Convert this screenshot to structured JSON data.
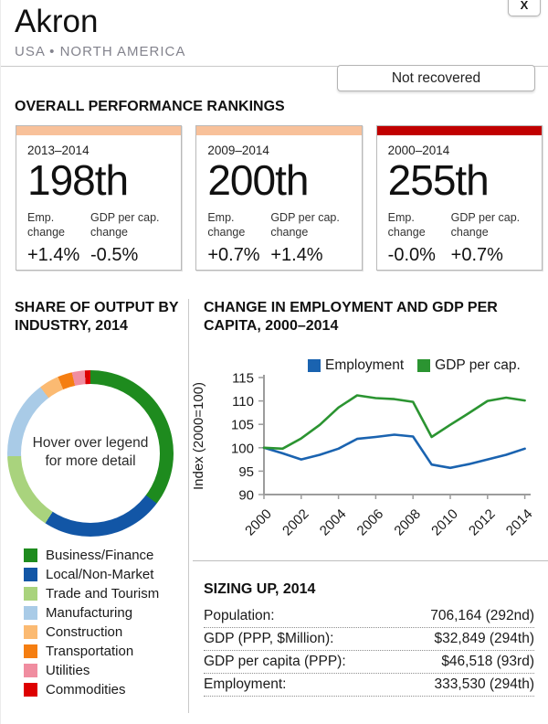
{
  "header": {
    "title": "Akron",
    "subtitle": "USA • NORTH AMERICA",
    "close_label": "X",
    "status_button": "Not recovered"
  },
  "rankings": {
    "heading": "OVERALL PERFORMANCE RANKINGS",
    "cards": [
      {
        "period": "2013–2014",
        "rank": "198th",
        "bar_color": "#f8c19a",
        "stats": [
          {
            "label": "Emp. change",
            "value": "+1.4%"
          },
          {
            "label": "GDP per cap. change",
            "value": "-0.5%"
          }
        ]
      },
      {
        "period": "2009–2014",
        "rank": "200th",
        "bar_color": "#f8c19a",
        "stats": [
          {
            "label": "Emp. change",
            "value": "+0.7%"
          },
          {
            "label": "GDP per cap. change",
            "value": "+1.4%"
          }
        ]
      },
      {
        "period": "2000–2014",
        "rank": "255th",
        "bar_color": "#c10000",
        "stats": [
          {
            "label": "Emp. change",
            "value": "-0.0%"
          },
          {
            "label": "GDP per cap. change",
            "value": "+0.7%"
          }
        ]
      }
    ]
  },
  "chart_data": [
    {
      "type": "pie",
      "donut": true,
      "title": "SHARE OF OUTPUT BY INDUSTRY, 2014",
      "note": "Hover over legend for more detail",
      "labels": [
        "Business/Finance",
        "Local/Non-Market",
        "Trade and Tourism",
        "Manufacturing",
        "Construction",
        "Transportation",
        "Utilities",
        "Commodities"
      ],
      "values": [
        35.3,
        23.9,
        15.3,
        15.3,
        3.9,
        2.8,
        2.5,
        1.1
      ],
      "colors": [
        "#1e8b1e",
        "#1256a6",
        "#a9d37d",
        "#a9cbe7",
        "#fbba72",
        "#f57e11",
        "#f08da0",
        "#dd0000"
      ],
      "legend_position": "bottom-left",
      "start_angle_deg": 0,
      "direction": "clockwise"
    },
    {
      "type": "line",
      "title": "CHANGE IN EMPLOYMENT AND GDP PER CAPITA, 2000–2014",
      "ylabel": "Index (2000=100)",
      "xlabel": "",
      "ylim": [
        90,
        115
      ],
      "yticks": [
        115,
        110,
        105,
        100,
        95,
        90
      ],
      "xticks": [
        2000,
        2002,
        2004,
        2006,
        2008,
        2010,
        2012,
        2014
      ],
      "grid": false,
      "legend_position": "top",
      "x": [
        2000,
        2001,
        2002,
        2003,
        2004,
        2005,
        2006,
        2007,
        2008,
        2009,
        2010,
        2011,
        2012,
        2013,
        2014
      ],
      "series": [
        {
          "name": "Employment",
          "color": "#1a63b0",
          "values": [
            100,
            98.8,
            97.5,
            98.5,
            99.8,
            101.9,
            102.3,
            102.8,
            102.4,
            96.4,
            95.7,
            96.5,
            97.5,
            98.5,
            99.8
          ]
        },
        {
          "name": "GDP per cap.",
          "color": "#2b9431",
          "values": [
            100,
            99.8,
            102.0,
            104.9,
            108.6,
            111.2,
            110.6,
            110.4,
            109.8,
            102.3,
            104.9,
            107.4,
            110.0,
            110.7,
            110.1
          ]
        }
      ]
    }
  ],
  "sizing": {
    "heading": "SIZING UP, 2014",
    "rows": [
      {
        "label": "Population:",
        "value": "706,164 (292nd)"
      },
      {
        "label": "GDP (PPP, $Million):",
        "value": "$32,849 (294th)"
      },
      {
        "label": "GDP per capita (PPP):",
        "value": "$46,518 (93rd)"
      },
      {
        "label": "Employment:",
        "value": "333,530 (294th)"
      }
    ]
  }
}
